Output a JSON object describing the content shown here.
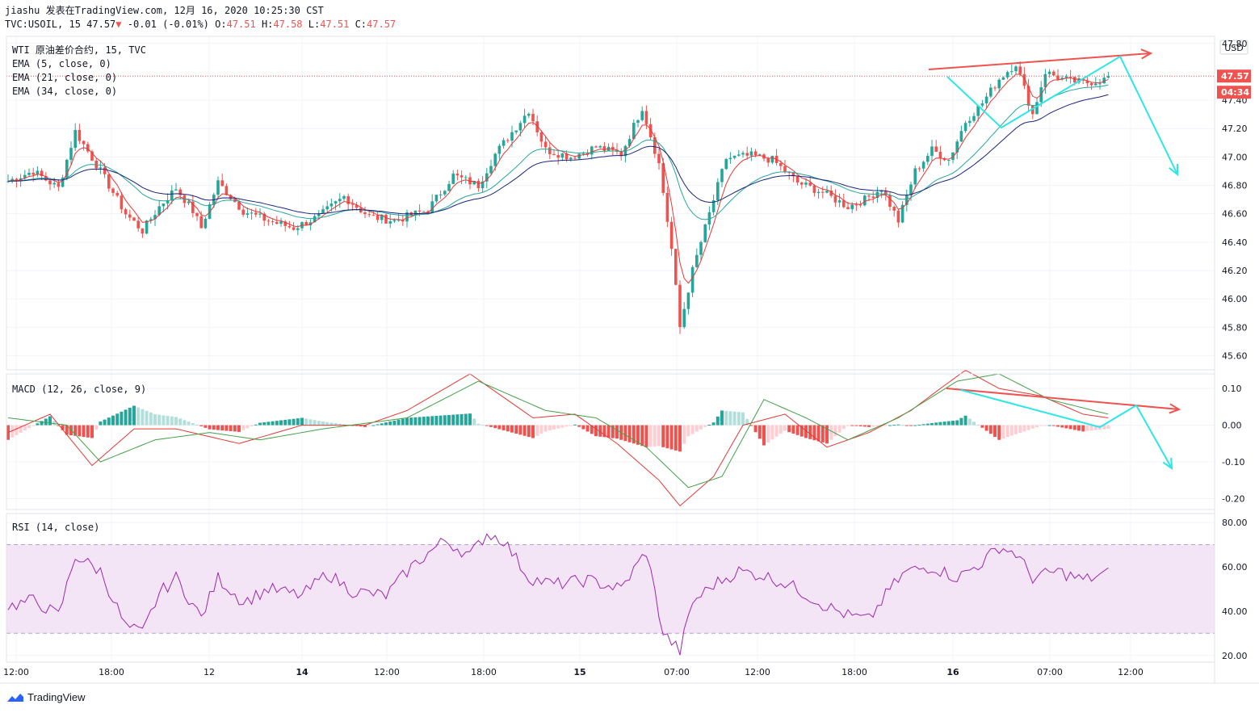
{
  "header": {
    "publish_line": "jiashu 发表在TradingView.com, 12月 16, 2020 10:25:30 CST",
    "symbol": "TVC:USOIL, 15",
    "last": "47.57",
    "arrow": "▼",
    "change": "-0.01 (-0.01%)",
    "o_label": "O:",
    "o_val": "47.51",
    "h_label": "H:",
    "h_val": "47.58",
    "l_label": "L:",
    "l_val": "47.51",
    "c_label": "C:",
    "c_val": "47.57"
  },
  "legend": {
    "title": "WTI 原油差价合约, 15, TVC",
    "ema5": "EMA (5, close, 0)",
    "ema21": "EMA (21, close, 0)",
    "ema34": "EMA (34, close, 0)",
    "macd": "MACD (12, 26, close, 9)",
    "rsi": "RSI (14, close)"
  },
  "price_axis": {
    "currency": "USD",
    "ticks": [
      "47.80",
      "47.40",
      "47.20",
      "47.00",
      "46.80",
      "46.60",
      "46.40",
      "46.20",
      "46.00",
      "45.80",
      "45.60"
    ],
    "last_price_tag": "47.57",
    "countdown_tag": "04:34"
  },
  "macd_axis": {
    "ticks": [
      "0.10",
      "0.00",
      "-0.10",
      "-0.20"
    ]
  },
  "rsi_axis": {
    "ticks": [
      "80.00",
      "60.00",
      "40.00",
      "20.00"
    ]
  },
  "time_axis": {
    "labels": [
      {
        "t": "12:00",
        "bold": false
      },
      {
        "t": "18:00",
        "bold": false
      },
      {
        "t": "12",
        "bold": false
      },
      {
        "t": "14",
        "bold": true
      },
      {
        "t": "12:00",
        "bold": false
      },
      {
        "t": "18:00",
        "bold": false
      },
      {
        "t": "15",
        "bold": true
      },
      {
        "t": "07:00",
        "bold": false
      },
      {
        "t": "12:00",
        "bold": false
      },
      {
        "t": "18:00",
        "bold": false
      },
      {
        "t": "16",
        "bold": true
      },
      {
        "t": "07:00",
        "bold": false
      },
      {
        "t": "12:00",
        "bold": false
      }
    ]
  },
  "footer": {
    "brand": "TradingView"
  },
  "colors": {
    "up": "#26a69a",
    "down": "#ef5350",
    "ema5": "#e53935",
    "ema21": "#26a69a",
    "ema34": "#1a237e",
    "macd_line": "#e53935",
    "signal_line": "#43a047",
    "rsi_line": "#9c27b0",
    "rsi_band": "#f3e5f5",
    "annot_red": "#ef5350",
    "annot_cyan": "#2ee6e6",
    "last_price": "#ef5350"
  },
  "chart_data": [
    {
      "type": "candlestick",
      "title": "WTI 原油差价合约, 15, TVC",
      "ylabel": "USD",
      "ylim": [
        45.5,
        47.85
      ],
      "series_names": [
        "EMA (5, close, 0)",
        "EMA (21, close, 0)",
        "EMA (34, close, 0)"
      ],
      "last_price": 47.57,
      "close_anchors": [
        [
          0,
          46.83
        ],
        [
          6,
          46.9
        ],
        [
          12,
          46.78
        ],
        [
          16,
          47.18
        ],
        [
          22,
          46.9
        ],
        [
          28,
          46.6
        ],
        [
          32,
          46.48
        ],
        [
          36,
          46.65
        ],
        [
          40,
          46.78
        ],
        [
          44,
          46.62
        ],
        [
          46,
          46.5
        ],
        [
          50,
          46.82
        ],
        [
          56,
          46.62
        ],
        [
          62,
          46.55
        ],
        [
          68,
          46.5
        ],
        [
          74,
          46.58
        ],
        [
          80,
          46.72
        ],
        [
          86,
          46.58
        ],
        [
          92,
          46.55
        ],
        [
          100,
          46.63
        ],
        [
          106,
          46.87
        ],
        [
          112,
          46.8
        ],
        [
          116,
          47.02
        ],
        [
          124,
          47.33
        ],
        [
          128,
          47.05
        ],
        [
          134,
          47.0
        ],
        [
          140,
          47.07
        ],
        [
          146,
          47.02
        ],
        [
          151,
          47.35
        ],
        [
          155,
          46.95
        ],
        [
          158,
          46.35
        ],
        [
          160,
          45.8
        ],
        [
          163,
          46.2
        ],
        [
          167,
          46.6
        ],
        [
          171,
          46.99
        ],
        [
          177,
          47.01
        ],
        [
          182,
          46.98
        ],
        [
          188,
          46.82
        ],
        [
          194,
          46.75
        ],
        [
          200,
          46.65
        ],
        [
          204,
          46.7
        ],
        [
          208,
          46.78
        ],
        [
          212,
          46.55
        ],
        [
          216,
          46.9
        ],
        [
          220,
          47.05
        ],
        [
          224,
          46.98
        ],
        [
          228,
          47.25
        ],
        [
          232,
          47.38
        ],
        [
          236,
          47.55
        ],
        [
          240,
          47.66
        ],
        [
          244,
          47.3
        ],
        [
          247,
          47.6
        ],
        [
          251,
          47.55
        ],
        [
          256,
          47.52
        ],
        [
          262,
          47.55
        ]
      ]
    },
    {
      "type": "bar",
      "title": "MACD (12, 26, close, 9)",
      "ylim": [
        -0.23,
        0.14
      ],
      "macd_anchors": [
        [
          0,
          -0.02
        ],
        [
          10,
          0.03
        ],
        [
          20,
          -0.11
        ],
        [
          30,
          -0.01
        ],
        [
          40,
          -0.01
        ],
        [
          55,
          -0.05
        ],
        [
          70,
          0.0
        ],
        [
          85,
          0.0
        ],
        [
          95,
          0.04
        ],
        [
          110,
          0.14
        ],
        [
          125,
          0.02
        ],
        [
          135,
          0.03
        ],
        [
          145,
          -0.05
        ],
        [
          155,
          -0.15
        ],
        [
          160,
          -0.22
        ],
        [
          168,
          -0.14
        ],
        [
          175,
          0.0
        ],
        [
          185,
          0.03
        ],
        [
          195,
          -0.06
        ],
        [
          205,
          -0.02
        ],
        [
          215,
          0.04
        ],
        [
          222,
          0.1
        ],
        [
          228,
          0.15
        ],
        [
          236,
          0.1
        ],
        [
          246,
          0.08
        ],
        [
          256,
          0.03
        ],
        [
          262,
          0.02
        ]
      ],
      "signal_anchors": [
        [
          0,
          0.02
        ],
        [
          14,
          0.0
        ],
        [
          22,
          -0.1
        ],
        [
          35,
          -0.04
        ],
        [
          48,
          -0.02
        ],
        [
          60,
          -0.04
        ],
        [
          75,
          -0.01
        ],
        [
          95,
          0.02
        ],
        [
          112,
          0.12
        ],
        [
          128,
          0.04
        ],
        [
          140,
          0.02
        ],
        [
          152,
          -0.06
        ],
        [
          162,
          -0.17
        ],
        [
          170,
          -0.14
        ],
        [
          180,
          0.07
        ],
        [
          190,
          0.02
        ],
        [
          200,
          -0.04
        ],
        [
          212,
          0.02
        ],
        [
          226,
          0.12
        ],
        [
          236,
          0.14
        ],
        [
          248,
          0.07
        ],
        [
          262,
          0.03
        ]
      ]
    },
    {
      "type": "line",
      "title": "RSI (14, close)",
      "ylim": [
        17.0,
        84.0
      ],
      "band": [
        30,
        70
      ],
      "rsi_anchors": [
        [
          0,
          42
        ],
        [
          6,
          45
        ],
        [
          12,
          38
        ],
        [
          16,
          65
        ],
        [
          22,
          58
        ],
        [
          28,
          33
        ],
        [
          32,
          30
        ],
        [
          36,
          48
        ],
        [
          40,
          55
        ],
        [
          46,
          37
        ],
        [
          50,
          55
        ],
        [
          56,
          44
        ],
        [
          62,
          50
        ],
        [
          70,
          47
        ],
        [
          76,
          57
        ],
        [
          82,
          49
        ],
        [
          90,
          47
        ],
        [
          96,
          60
        ],
        [
          104,
          72
        ],
        [
          110,
          65
        ],
        [
          114,
          75
        ],
        [
          118,
          72
        ],
        [
          124,
          55
        ],
        [
          130,
          52
        ],
        [
          138,
          54
        ],
        [
          146,
          50
        ],
        [
          152,
          67
        ],
        [
          156,
          30
        ],
        [
          160,
          22
        ],
        [
          163,
          44
        ],
        [
          168,
          52
        ],
        [
          174,
          58
        ],
        [
          180,
          56
        ],
        [
          186,
          52
        ],
        [
          194,
          43
        ],
        [
          200,
          38
        ],
        [
          205,
          36
        ],
        [
          210,
          50
        ],
        [
          214,
          58
        ],
        [
          220,
          60
        ],
        [
          226,
          55
        ],
        [
          232,
          62
        ],
        [
          236,
          69
        ],
        [
          240,
          66
        ],
        [
          244,
          55
        ],
        [
          250,
          58
        ],
        [
          256,
          54
        ],
        [
          262,
          57
        ]
      ]
    }
  ]
}
